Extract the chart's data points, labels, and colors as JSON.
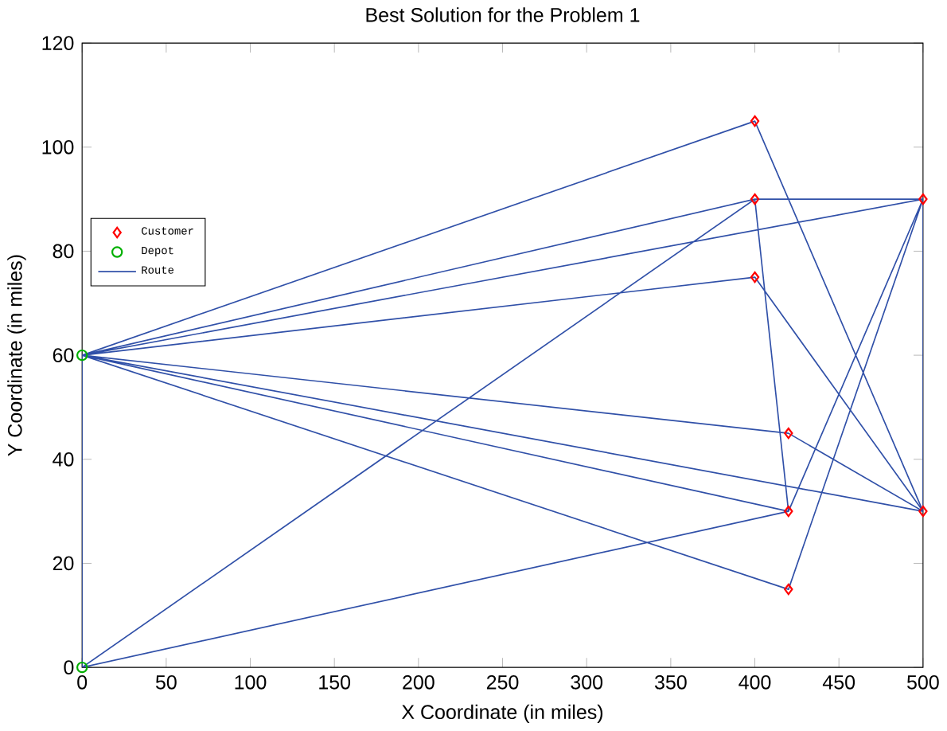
{
  "chart_data": {
    "type": "scatter",
    "title": "Best Solution for the Problem 1",
    "xlabel": "X Coordinate (in miles)",
    "ylabel": "Y Coordinate (in miles)",
    "xlim": [
      0,
      500
    ],
    "ylim": [
      0,
      120
    ],
    "xticks": [
      0,
      50,
      100,
      150,
      200,
      250,
      300,
      350,
      400,
      450,
      500
    ],
    "yticks": [
      0,
      20,
      40,
      60,
      80,
      100,
      120
    ],
    "grid": false,
    "legend": "left",
    "series": [
      {
        "name": "Customer",
        "type": "scatter",
        "marker": "diamond",
        "color": "#ff0000",
        "x": [
          400,
          400,
          400,
          420,
          420,
          420,
          500,
          500
        ],
        "values": [
          105,
          90,
          75,
          45,
          30,
          15,
          90,
          30
        ]
      },
      {
        "name": "Depot",
        "type": "scatter",
        "marker": "circle",
        "color": "#00b000",
        "x": [
          0,
          0
        ],
        "values": [
          60,
          0
        ]
      },
      {
        "name": "Route",
        "type": "line",
        "color": "#3050a8",
        "x": [
          0,
          400,
          500,
          0,
          400,
          500,
          0,
          400,
          500,
          500,
          420,
          0,
          420,
          500,
          0,
          420,
          500,
          0,
          0,
          400,
          420,
          0
        ],
        "values": [
          60,
          105,
          30,
          60,
          90,
          90,
          60,
          75,
          30,
          90,
          30,
          60,
          45,
          30,
          60,
          15,
          90,
          60,
          0,
          90,
          30,
          0
        ]
      }
    ]
  }
}
